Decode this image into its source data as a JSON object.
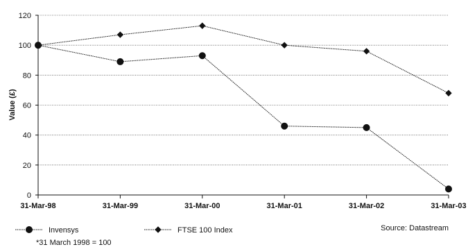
{
  "chart_data": {
    "type": "line",
    "title": "",
    "xlabel": "",
    "ylabel": "Value (£)",
    "categories": [
      "31-Mar-98",
      "31-Mar-99",
      "31-Mar-00",
      "31-Mar-01",
      "31-Mar-02",
      "31-Mar-03"
    ],
    "yticks": [
      "0",
      "20",
      "40",
      "60",
      "80",
      "100",
      "120"
    ],
    "ylim": [
      0,
      120
    ],
    "grid": "horizontal dotted",
    "legend_position": "bottom-left",
    "series": [
      {
        "name": "Invensys",
        "values": [
          100,
          89,
          93,
          46,
          45,
          4
        ],
        "marker": "circle",
        "color": "#111111"
      },
      {
        "name": "FTSE 100 Index",
        "values": [
          100,
          107,
          113,
          100,
          96,
          68
        ],
        "marker": "diamond",
        "color": "#111111"
      }
    ]
  },
  "source_note": "Source: Datastream",
  "footnote": "*31 March 1998 = 100"
}
